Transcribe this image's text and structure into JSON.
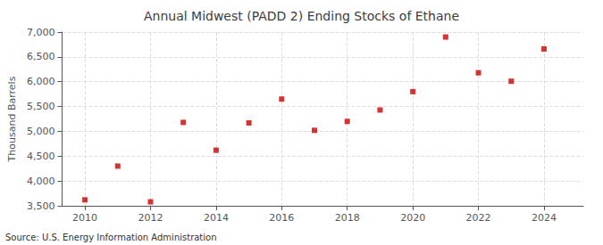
{
  "chart_data": {
    "type": "scatter",
    "title": "Annual Midwest (PADD 2) Ending Stocks of Ethane",
    "ylabel": "Thousand Barrels",
    "annotation": "Source: U.S. Energy Information Administration",
    "x": [
      2010,
      2011,
      2012,
      2013,
      2014,
      2015,
      2016,
      2017,
      2018,
      2019,
      2020,
      2021,
      2022,
      2023,
      2024
    ],
    "values": [
      3620,
      4300,
      3580,
      5180,
      4620,
      5170,
      5650,
      5020,
      5200,
      5430,
      5800,
      6900,
      6180,
      6010,
      6660
    ],
    "color": "#cc0000",
    "marker": "square",
    "xlim": [
      2009.3,
      2025.2
    ],
    "xticks": [
      2010,
      2012,
      2014,
      2016,
      2018,
      2020,
      2022,
      2024
    ],
    "ylim": [
      3500,
      7000
    ],
    "yticks": [
      {
        "value": 3500,
        "label": "3,500"
      },
      {
        "value": 4000,
        "label": "4,000"
      },
      {
        "value": 4500,
        "label": "4,500"
      },
      {
        "value": 5000,
        "label": "5,000"
      },
      {
        "value": 5500,
        "label": "5,500"
      },
      {
        "value": 6000,
        "label": "6,000"
      },
      {
        "value": 6500,
        "label": "6,500"
      },
      {
        "value": 7000,
        "label": "7,000"
      }
    ],
    "grid": true
  }
}
